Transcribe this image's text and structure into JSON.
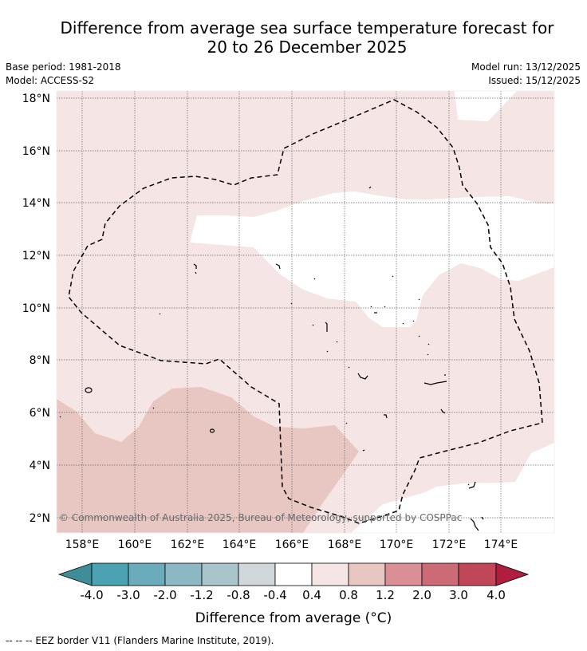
{
  "title_line1": "Difference from average sea surface temperature forecast for",
  "title_line2": "20 to 26 December 2025",
  "base_period": "Base period: 1981-2018",
  "model": "Model: ACCESS-S2",
  "model_run": "Model run: 13/12/2025",
  "issued": "Issued: 15/12/2025",
  "map": {
    "lat_labels": [
      "2°N",
      "4°N",
      "6°N",
      "8°N",
      "10°N",
      "12°N",
      "14°N",
      "16°N",
      "18°N"
    ],
    "lon_labels": [
      "158°E",
      "160°E",
      "162°E",
      "164°E",
      "166°E",
      "168°E",
      "170°E",
      "172°E",
      "174°E"
    ],
    "copyright": "© Commonwealth of Australia 2025, Bureau of Meteorology, supported by COSPPac",
    "colors": {
      "light_pink": "#f5e6e5",
      "mid_pink": "#e8c6c2",
      "white": "#ffffff"
    }
  },
  "colorbar": {
    "ticks": [
      "-4.0",
      "-3.0",
      "-2.0",
      "-1.2",
      "-0.8",
      "-0.4",
      "0.4",
      "0.8",
      "1.2",
      "2.0",
      "3.0",
      "4.0"
    ],
    "colors": [
      "#4aa2b2",
      "#6aacbc",
      "#8cb8c4",
      "#a9c5cb",
      "#d0d7da",
      "#ffffff",
      "#f5e6e5",
      "#e8c6c2",
      "#d98f95",
      "#cc6a75",
      "#c04757"
    ],
    "under_color": "#3e8d98",
    "over_color": "#b01e3f",
    "label": "Difference from average (°C)"
  },
  "footnote": "--  --  -- EEZ border V11 (Flanders Marine Institute, 2019)."
}
